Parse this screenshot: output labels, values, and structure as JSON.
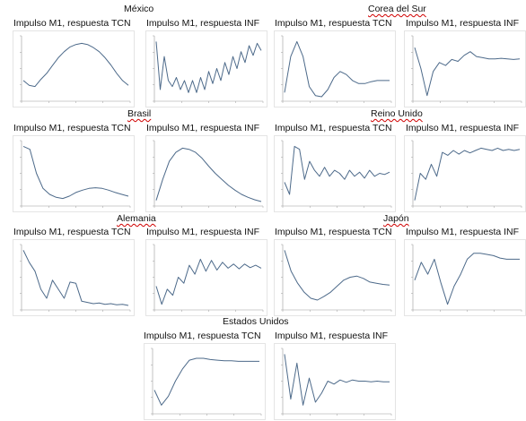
{
  "colors": {
    "line": "#4d6a8a",
    "axis": "#9a9a9a",
    "text": "#111111",
    "underline": "#d00000"
  },
  "countries": [
    {
      "name": "México",
      "underlined": false
    },
    {
      "name": "Corea del Sur",
      "underlined": true
    },
    {
      "name": "Brasil",
      "underlined": true
    },
    {
      "name": "Reino Unido",
      "underlined": true
    },
    {
      "name": "Alemania",
      "underlined": true
    },
    {
      "name": "Japón",
      "underlined": true
    },
    {
      "name": "Estados Unidos",
      "underlined": false
    }
  ],
  "panel_title_tcn": "Impulso M1, respuesta TCN",
  "panel_title_inf": "Impulso M1, respuesta INF",
  "chart_data": [
    {
      "type": "line",
      "country": "México",
      "title": "Impulso M1, respuesta TCN",
      "xlim": [
        0,
        20
      ],
      "series": [
        {
          "values": [
            0.3,
            0.22,
            0.2,
            0.32,
            0.42,
            0.55,
            0.68,
            0.78,
            0.86,
            0.9,
            0.92,
            0.9,
            0.85,
            0.78,
            0.68,
            0.56,
            0.42,
            0.3,
            0.22
          ]
        }
      ]
    },
    {
      "type": "line",
      "country": "México",
      "title": "Impulso M1, respuesta INF",
      "xlim": [
        0,
        20
      ],
      "series": [
        {
          "values": [
            0.95,
            0.15,
            0.7,
            0.3,
            0.2,
            0.35,
            0.15,
            0.3,
            0.1,
            0.3,
            0.1,
            0.35,
            0.15,
            0.45,
            0.25,
            0.5,
            0.3,
            0.6,
            0.4,
            0.7,
            0.5,
            0.78,
            0.6,
            0.88,
            0.72,
            0.92,
            0.8
          ]
        }
      ]
    },
    {
      "type": "line",
      "country": "Corea del Sur",
      "title": "Impulso M1, respuesta TCN",
      "xlim": [
        0,
        20
      ],
      "series": [
        {
          "values": [
            0.1,
            0.7,
            0.95,
            0.7,
            0.2,
            0.05,
            0.03,
            0.15,
            0.35,
            0.45,
            0.4,
            0.3,
            0.25,
            0.25,
            0.28,
            0.3,
            0.3,
            0.3
          ]
        }
      ]
    },
    {
      "type": "line",
      "country": "Corea del Sur",
      "title": "Impulso M1, respuesta INF",
      "xlim": [
        0,
        20
      ],
      "series": [
        {
          "values": [
            0.85,
            0.5,
            0.05,
            0.45,
            0.6,
            0.55,
            0.65,
            0.62,
            0.72,
            0.78,
            0.7,
            0.68,
            0.66,
            0.66,
            0.67,
            0.66,
            0.65,
            0.66
          ]
        }
      ]
    },
    {
      "type": "line",
      "country": "Brasil",
      "title": "Impulso M1, respuesta TCN",
      "xlim": [
        0,
        20
      ],
      "series": [
        {
          "values": [
            0.95,
            0.9,
            0.5,
            0.25,
            0.15,
            0.1,
            0.08,
            0.12,
            0.18,
            0.22,
            0.25,
            0.26,
            0.25,
            0.22,
            0.18,
            0.15,
            0.12
          ]
        }
      ]
    },
    {
      "type": "line",
      "country": "Brasil",
      "title": "Impulso M1, respuesta INF",
      "xlim": [
        0,
        20
      ],
      "series": [
        {
          "values": [
            0.05,
            0.4,
            0.7,
            0.85,
            0.92,
            0.9,
            0.85,
            0.75,
            0.62,
            0.5,
            0.4,
            0.3,
            0.22,
            0.15,
            0.1,
            0.06,
            0.03
          ]
        }
      ]
    },
    {
      "type": "line",
      "country": "Reino Unido",
      "title": "Impulso M1, respuesta TCN",
      "xlim": [
        0,
        20
      ],
      "series": [
        {
          "values": [
            0.35,
            0.15,
            0.95,
            0.9,
            0.4,
            0.7,
            0.55,
            0.45,
            0.6,
            0.45,
            0.55,
            0.5,
            0.4,
            0.55,
            0.45,
            0.52,
            0.42,
            0.55,
            0.45,
            0.5,
            0.48,
            0.52
          ]
        }
      ]
    },
    {
      "type": "line",
      "country": "Reino Unido",
      "title": "Impulso M1, respuesta INF",
      "xlim": [
        0,
        20
      ],
      "series": [
        {
          "values": [
            0.05,
            0.5,
            0.4,
            0.65,
            0.45,
            0.85,
            0.8,
            0.88,
            0.82,
            0.88,
            0.84,
            0.88,
            0.92,
            0.9,
            0.88,
            0.92,
            0.88,
            0.9,
            0.88,
            0.9
          ]
        }
      ]
    },
    {
      "type": "line",
      "country": "Alemania",
      "title": "Impulso M1, respuesta TCN",
      "xlim": [
        0,
        20
      ],
      "series": [
        {
          "values": [
            0.95,
            0.75,
            0.6,
            0.3,
            0.15,
            0.45,
            0.3,
            0.15,
            0.42,
            0.4,
            0.1,
            0.08,
            0.06,
            0.07,
            0.05,
            0.06,
            0.04,
            0.05,
            0.03
          ]
        }
      ]
    },
    {
      "type": "line",
      "country": "Alemania",
      "title": "Impulso M1, respuesta INF",
      "xlim": [
        0,
        20
      ],
      "series": [
        {
          "values": [
            0.35,
            0.05,
            0.3,
            0.2,
            0.5,
            0.4,
            0.7,
            0.55,
            0.8,
            0.6,
            0.78,
            0.62,
            0.75,
            0.65,
            0.72,
            0.64,
            0.72,
            0.66,
            0.7,
            0.65
          ]
        }
      ]
    },
    {
      "type": "line",
      "country": "Japón",
      "title": "Impulso M1, respuesta TCN",
      "xlim": [
        0,
        20
      ],
      "series": [
        {
          "values": [
            0.95,
            0.6,
            0.4,
            0.25,
            0.15,
            0.12,
            0.18,
            0.25,
            0.35,
            0.45,
            0.5,
            0.52,
            0.48,
            0.42,
            0.4,
            0.38,
            0.37
          ]
        }
      ]
    },
    {
      "type": "line",
      "country": "Japón",
      "title": "Impulso M1, respuesta INF",
      "xlim": [
        0,
        20
      ],
      "series": [
        {
          "values": [
            0.45,
            0.75,
            0.55,
            0.8,
            0.4,
            0.05,
            0.35,
            0.55,
            0.8,
            0.9,
            0.9,
            0.88,
            0.86,
            0.82,
            0.8,
            0.8,
            0.8
          ]
        }
      ]
    },
    {
      "type": "line",
      "country": "Estados Unidos",
      "title": "Impulso M1, respuesta TCN",
      "xlim": [
        0,
        20
      ],
      "series": [
        {
          "values": [
            0.35,
            0.1,
            0.25,
            0.5,
            0.7,
            0.85,
            0.88,
            0.88,
            0.86,
            0.85,
            0.84,
            0.84,
            0.83,
            0.83,
            0.83,
            0.83
          ]
        }
      ]
    },
    {
      "type": "line",
      "country": "Estados Unidos",
      "title": "Impulso M1, respuesta INF",
      "xlim": [
        0,
        20
      ],
      "series": [
        {
          "values": [
            0.95,
            0.2,
            0.8,
            0.1,
            0.55,
            0.15,
            0.3,
            0.5,
            0.45,
            0.52,
            0.48,
            0.52,
            0.5,
            0.5,
            0.49,
            0.5,
            0.49,
            0.49
          ]
        }
      ]
    }
  ]
}
